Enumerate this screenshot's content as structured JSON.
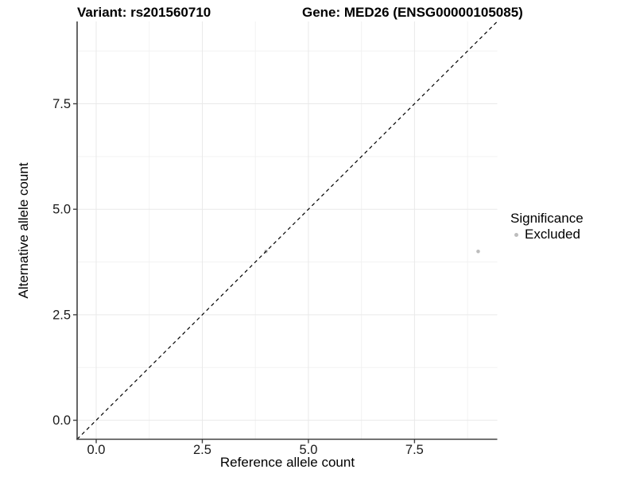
{
  "header": {
    "variant_title": "Variant: rs201560710",
    "gene_title": "Gene: MED26 (ENSG00000105085)"
  },
  "legend": {
    "title": "Significance",
    "items": [
      {
        "label": "Excluded",
        "color": "#bdbdbd"
      }
    ]
  },
  "chart_data": {
    "type": "scatter",
    "xlabel": "Reference allele count",
    "ylabel": "Alternative allele count",
    "xlim": [
      -0.45,
      9.45
    ],
    "ylim": [
      -0.45,
      9.45
    ],
    "xtick_labels": [
      "0.0",
      "2.5",
      "5.0",
      "7.5"
    ],
    "ytick_labels": [
      "0.0",
      "2.5",
      "5.0",
      "7.5"
    ],
    "minor_ticks": [
      1.25,
      3.75,
      6.25,
      8.75
    ],
    "grid": "major+minor",
    "legend_position": "right",
    "reference_line": {
      "type": "identity",
      "style": "dashed",
      "color": "#000000"
    },
    "series": [
      {
        "name": "Excluded",
        "color": "#bdbdbd",
        "points": [
          [
            4,
            4
          ],
          [
            9,
            4
          ]
        ]
      }
    ],
    "colors": {
      "grid_major": "#e9e9e9",
      "grid_minor": "#f2f2f2",
      "axis_line": "#404040",
      "tick_text": "#1a1a1a"
    }
  }
}
